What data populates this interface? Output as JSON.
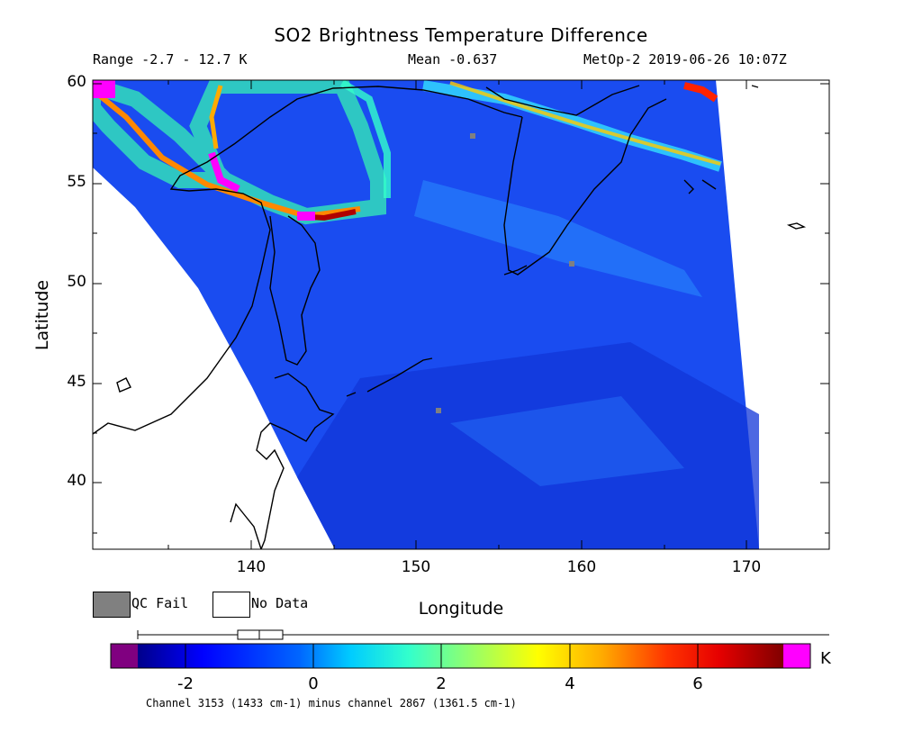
{
  "header": {
    "title": "SO2 Brightness Temperature Difference",
    "range": "Range -2.7 - 12.7 K",
    "mean": "Mean -0.637",
    "satellite": "MetOp-2 2019-06-26 10:07Z"
  },
  "axes": {
    "ylabel": "Latitude",
    "xlabel": "Longitude",
    "yticks": [
      "60",
      "55",
      "50",
      "45",
      "40"
    ],
    "xticks": [
      "140",
      "150",
      "160",
      "170"
    ]
  },
  "legend": {
    "qc_fail": "QC Fail",
    "no_data": "No Data",
    "qc_color": "#808080"
  },
  "colorbar": {
    "ticks": [
      "-2",
      "0",
      "2",
      "4",
      "6"
    ],
    "unit": "K"
  },
  "footnote": "Channel 3153 (1433 cm-1) minus channel 2867 (1361.5 cm-1)"
}
